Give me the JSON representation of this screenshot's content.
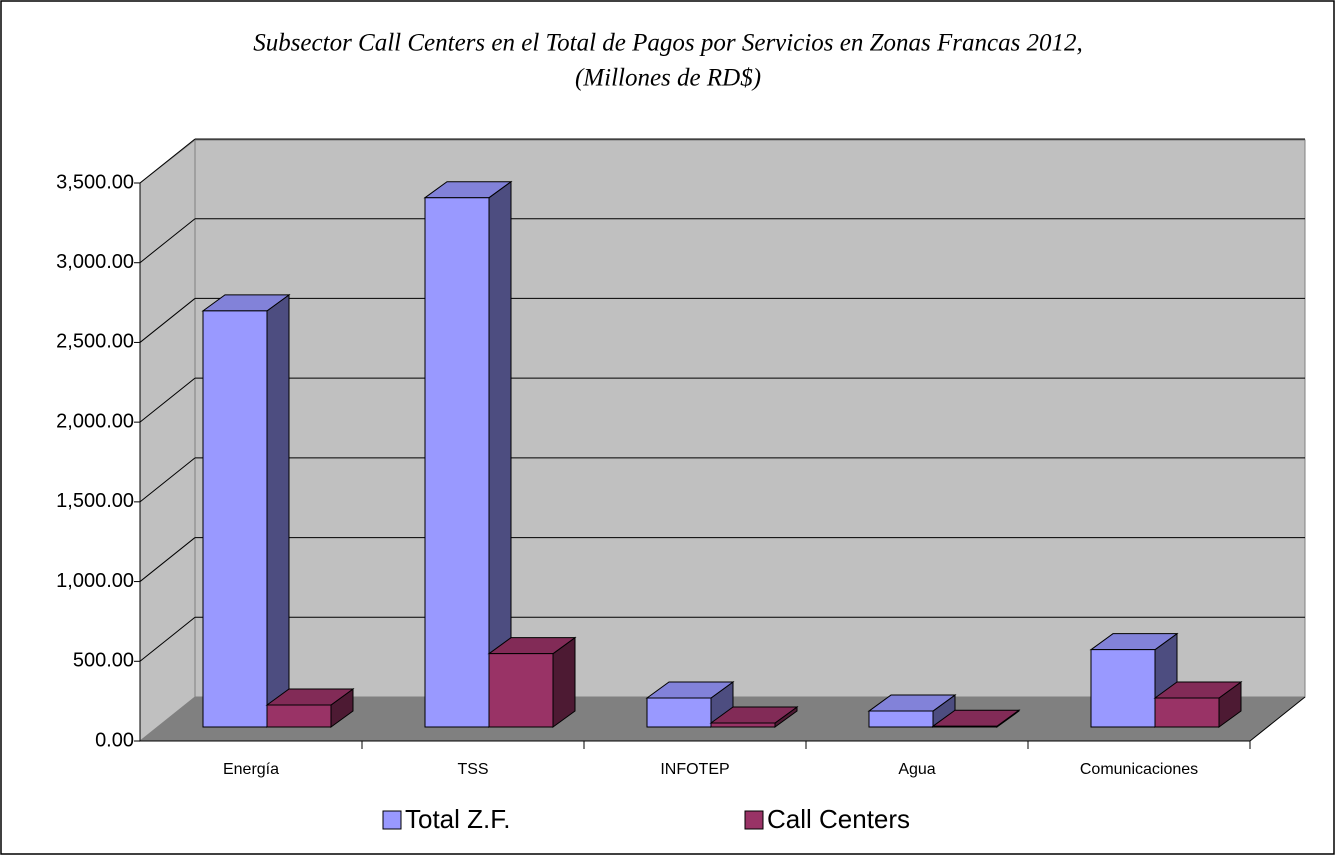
{
  "chart_data": {
    "type": "bar3d",
    "title": "Subsector Call Centers en el Total de Pagos por Servicios en Zonas Francas  2012,",
    "subtitle": "(Millones de RD$)",
    "categories": [
      "Energía",
      "TSS",
      "INFOTEP",
      "Agua",
      "Comunicaciones"
    ],
    "series": [
      {
        "name": "Total Z.F.",
        "color": "#9999ff",
        "values": [
          2610,
          3320,
          182,
          100,
          485
        ]
      },
      {
        "name": "Call Centers",
        "color": "#993366",
        "values": [
          138,
          460,
          25,
          5,
          182
        ]
      }
    ],
    "ylim": [
      0,
      3500
    ],
    "yticks": [
      {
        "value": 0,
        "label": "0.00"
      },
      {
        "value": 500,
        "label": "500.00"
      },
      {
        "value": 1000,
        "label": "1,000.00"
      },
      {
        "value": 1500,
        "label": "1,500.00"
      },
      {
        "value": 2000,
        "label": "2,000.00"
      },
      {
        "value": 2500,
        "label": "2,500.00"
      },
      {
        "value": 3000,
        "label": "3,000.00"
      },
      {
        "value": 3500,
        "label": "3,500.00"
      }
    ],
    "grid": true,
    "legend": "bottom"
  }
}
